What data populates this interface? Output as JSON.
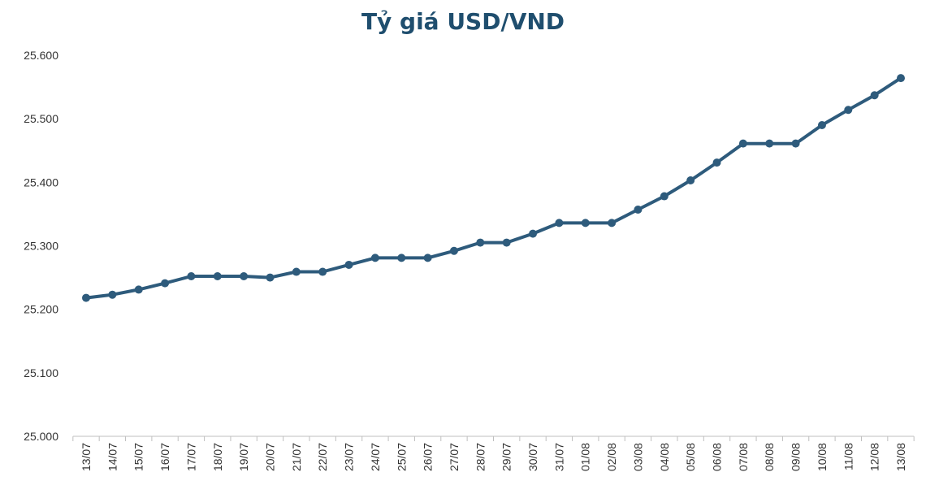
{
  "chart_data": {
    "type": "line",
    "title": "Tỷ giá USD/VND",
    "xlabel": "",
    "ylabel": "",
    "ylim": [
      25000,
      25600
    ],
    "y_ticks": [
      "25.000",
      "25.100",
      "25.200",
      "25.300",
      "25.400",
      "25.500",
      "25.600"
    ],
    "y_tick_values": [
      25000,
      25100,
      25200,
      25300,
      25400,
      25500,
      25600
    ],
    "grid": false,
    "legend": "none",
    "line_color": "#2e5b7c",
    "categories": [
      "13/07",
      "14/07",
      "15/07",
      "16/07",
      "17/07",
      "18/07",
      "19/07",
      "20/07",
      "21/07",
      "22/07",
      "23/07",
      "24/07",
      "25/07",
      "26/07",
      "27/07",
      "28/07",
      "29/07",
      "30/07",
      "31/07",
      "01/08",
      "02/08",
      "03/08",
      "04/08",
      "05/08",
      "06/08",
      "07/08",
      "08/08",
      "09/08",
      "10/08",
      "11/08",
      "12/08",
      "13/08"
    ],
    "series": [
      {
        "values": [
          25218,
          25223,
          25231,
          25241,
          25252,
          25252,
          25252,
          25250,
          25259,
          25259,
          25270,
          25281,
          25281,
          25281,
          25292,
          25305,
          25305,
          25319,
          25336,
          25336,
          25336,
          25357,
          25378,
          25403,
          25431,
          25461,
          25461,
          25461,
          25490,
          25514,
          25537,
          25564
        ]
      }
    ]
  }
}
